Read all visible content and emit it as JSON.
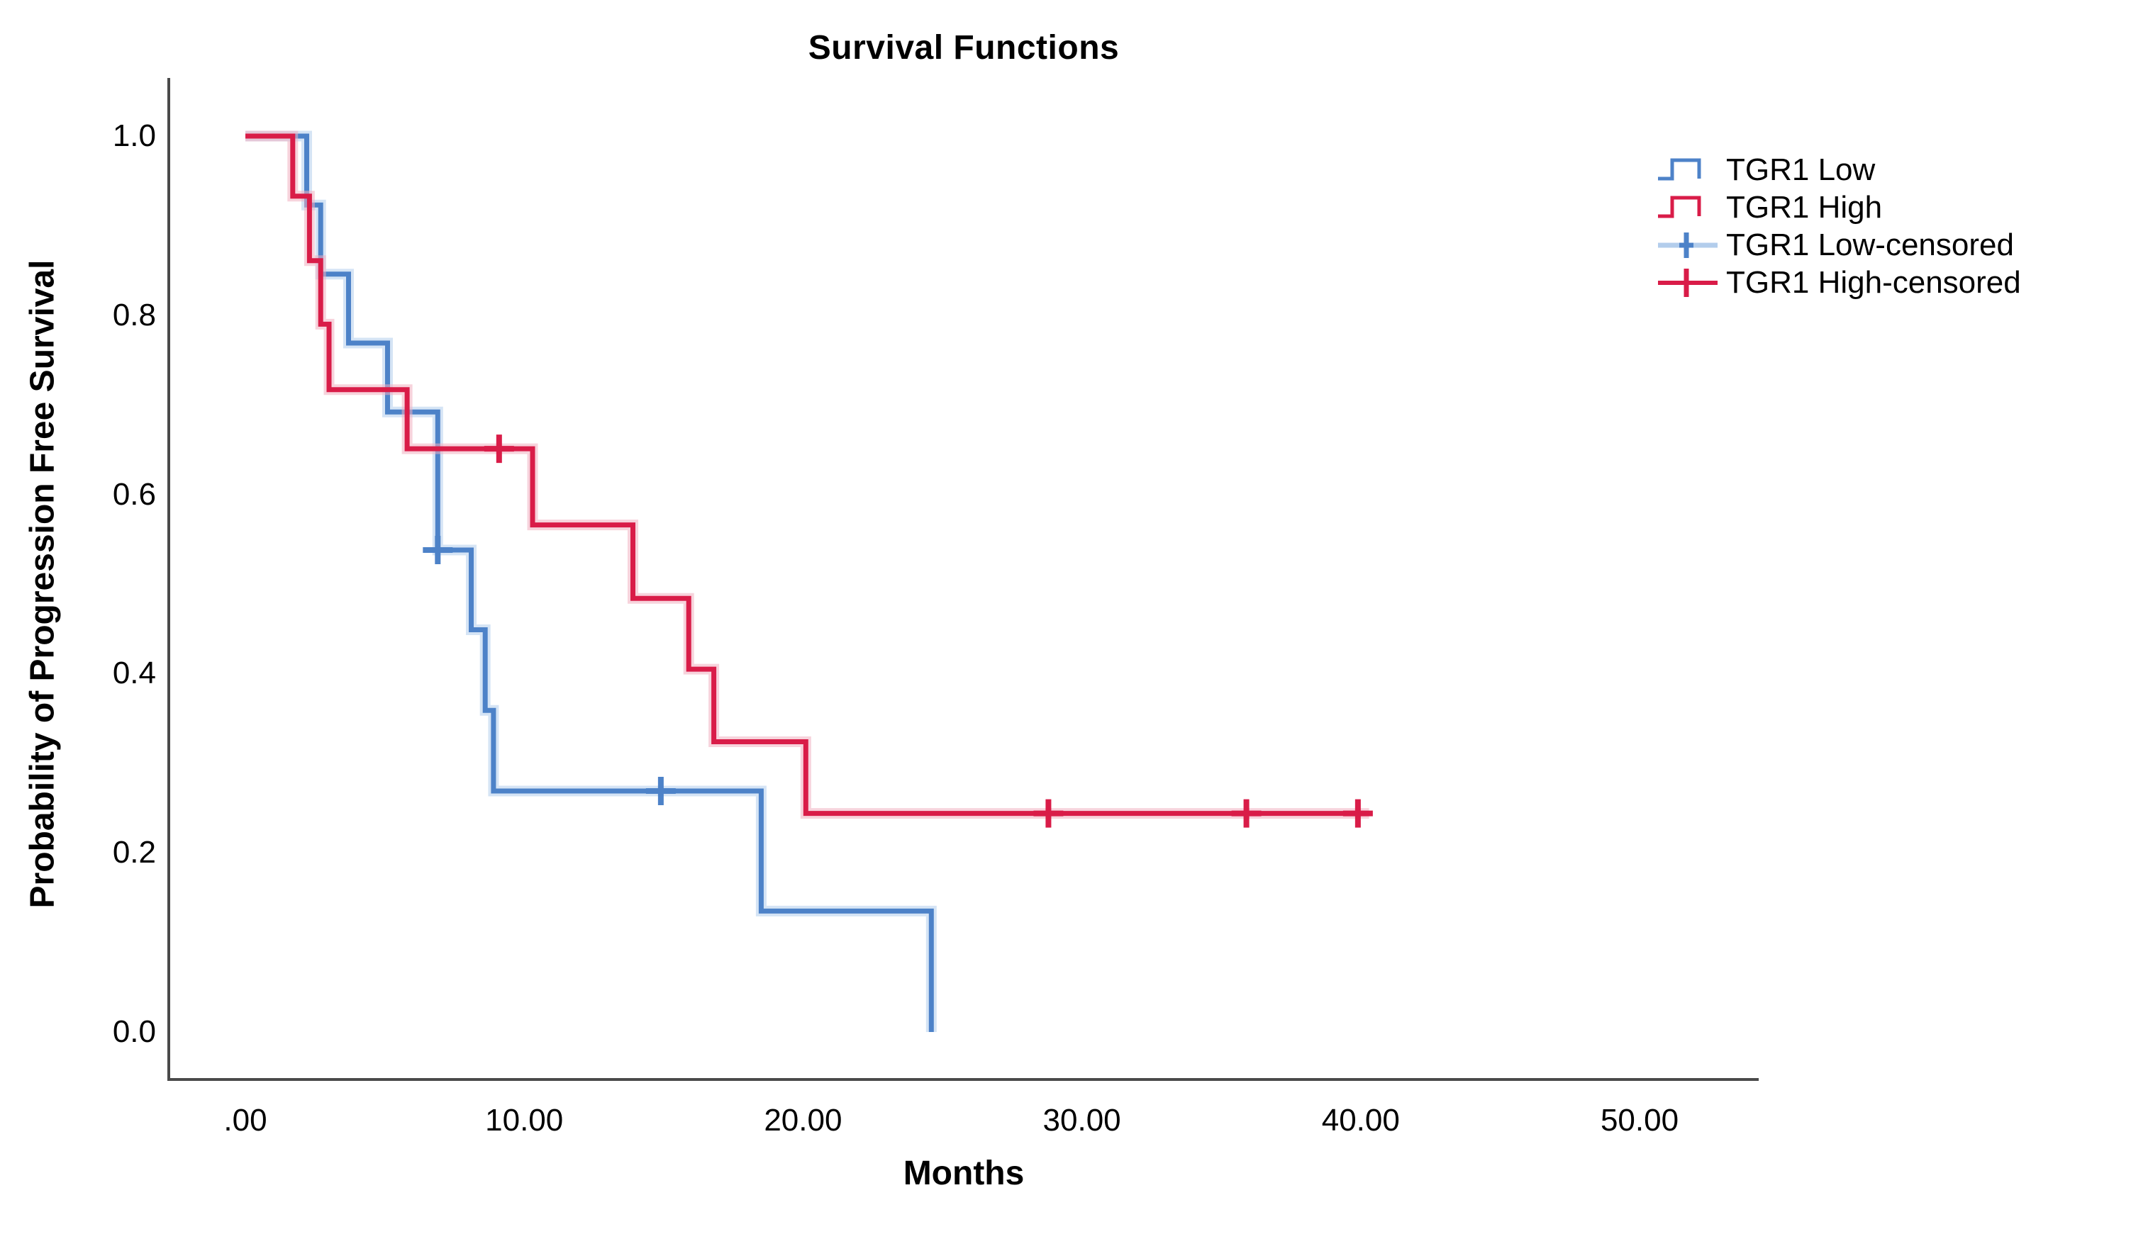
{
  "title": "Survival Functions",
  "x_axis": {
    "label": "Months",
    "ticks": [
      {
        "label": ".00",
        "value": 0
      },
      {
        "label": "10.00",
        "value": 10
      },
      {
        "label": "20.00",
        "value": 20
      },
      {
        "label": "30.00",
        "value": 30
      },
      {
        "label": "40.00",
        "value": 40
      },
      {
        "label": "50.00",
        "value": 50
      }
    ]
  },
  "y_axis": {
    "label": "Probability of Progression Free Survival",
    "ticks": [
      {
        "label": "1.0",
        "value": 1.0
      },
      {
        "label": "0.8",
        "value": 0.8
      },
      {
        "label": "0.6",
        "value": 0.6
      },
      {
        "label": "0.4",
        "value": 0.4
      },
      {
        "label": "0.2",
        "value": 0.2
      },
      {
        "label": "0.0",
        "value": 0.0
      }
    ]
  },
  "legend": {
    "items": [
      {
        "label": "TGR1 Low",
        "series": "low",
        "glyph": "step"
      },
      {
        "label": "TGR1 High",
        "series": "high",
        "glyph": "step"
      },
      {
        "label": "TGR1 Low-censored",
        "series": "low",
        "glyph": "censor"
      },
      {
        "label": "TGR1 High-censored",
        "series": "high",
        "glyph": "censor"
      }
    ]
  },
  "colors": {
    "low": "#4d82c8",
    "low_halo": "#b3cdec",
    "high": "#d91c48",
    "high_halo": "#f1aebf",
    "axis": "#4a4a4a",
    "text": "#000000"
  },
  "chart_data": {
    "type": "line",
    "subtype": "kaplan-meier-step",
    "title": "Survival Functions",
    "xlabel": "Months",
    "ylabel": "Probability of Progression Free Survival",
    "xlim": [
      -2.7,
      54.3
    ],
    "ylim": [
      -0.05,
      1.09
    ],
    "x_ticks": [
      0,
      10,
      20,
      30,
      40,
      50
    ],
    "y_ticks": [
      0.0,
      0.2,
      0.4,
      0.6,
      0.8,
      1.0
    ],
    "grid": false,
    "legend_position": "right",
    "series": [
      {
        "name": "TGR1 Low",
        "color_key": "low",
        "points": [
          [
            0,
            1.0
          ],
          [
            2.2,
            0.923
          ],
          [
            2.7,
            0.846
          ],
          [
            3.7,
            0.769
          ],
          [
            5.1,
            0.692
          ],
          [
            6.9,
            0.538
          ],
          [
            8.1,
            0.449
          ],
          [
            8.6,
            0.359
          ],
          [
            8.9,
            0.269
          ],
          [
            18.5,
            0.135
          ],
          [
            24.6,
            0.0
          ]
        ],
        "end_time": 24.6,
        "censored": [
          [
            6.9,
            0.538
          ],
          [
            14.9,
            0.269
          ]
        ]
      },
      {
        "name": "TGR1 High",
        "color_key": "high",
        "points": [
          [
            0,
            1.0
          ],
          [
            1.7,
            0.933
          ],
          [
            2.3,
            0.861
          ],
          [
            2.7,
            0.79
          ],
          [
            3.0,
            0.717
          ],
          [
            5.8,
            0.651
          ],
          [
            10.3,
            0.566
          ],
          [
            13.9,
            0.484
          ],
          [
            15.9,
            0.405
          ],
          [
            16.8,
            0.324
          ],
          [
            20.1,
            0.244
          ]
        ],
        "end_time": 40.3,
        "censored": [
          [
            9.1,
            0.651
          ],
          [
            28.8,
            0.244
          ],
          [
            35.9,
            0.244
          ],
          [
            39.9,
            0.244
          ]
        ]
      }
    ]
  }
}
